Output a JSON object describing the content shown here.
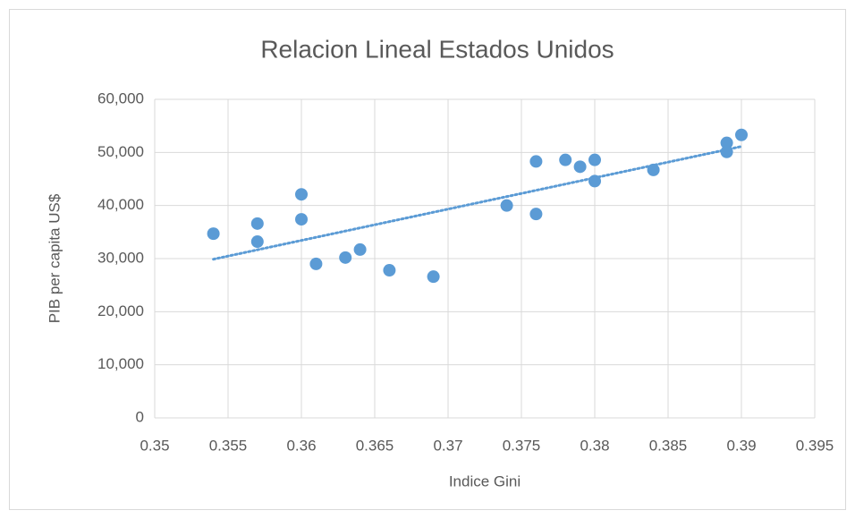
{
  "chart_data": {
    "type": "scatter",
    "title": "Relacion Lineal Estados Unidos",
    "xlabel": "Indice Gini",
    "ylabel": "PIB per capita US$",
    "x": [
      0.354,
      0.357,
      0.357,
      0.36,
      0.36,
      0.361,
      0.363,
      0.364,
      0.366,
      0.369,
      0.374,
      0.376,
      0.376,
      0.378,
      0.379,
      0.38,
      0.38,
      0.384,
      0.389,
      0.389,
      0.39
    ],
    "values": [
      34700,
      36600,
      33200,
      42100,
      37400,
      29000,
      30200,
      31700,
      27800,
      26600,
      40000,
      48300,
      38400,
      48600,
      47300,
      48600,
      44600,
      46700,
      51800,
      50100,
      53300
    ],
    "color": "#5b9bd5",
    "trendline": "linear",
    "grid": true,
    "xlim": [
      0.35,
      0.395
    ],
    "xticks": [
      0.35,
      0.355,
      0.36,
      0.365,
      0.37,
      0.375,
      0.38,
      0.385,
      0.39,
      0.395
    ],
    "ylim": [
      0,
      60000
    ],
    "yticks": [
      0,
      {
        "value": 10000,
        "label": "10,000"
      },
      {
        "value": 20000,
        "label": "20,000"
      },
      {
        "value": 30000,
        "label": "30,000"
      },
      {
        "value": 40000,
        "label": "40,000"
      },
      {
        "value": 50000,
        "label": "50,000"
      },
      {
        "value": 60000,
        "label": "60,000"
      }
    ]
  }
}
